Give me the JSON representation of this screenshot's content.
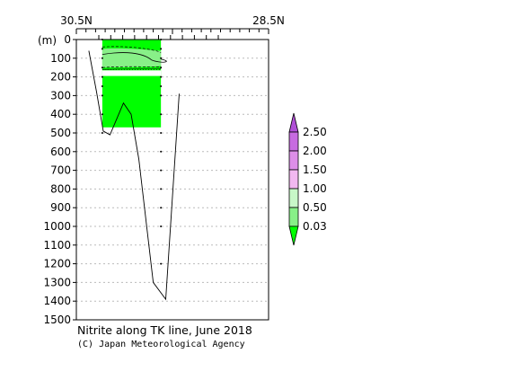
{
  "chart_data": {
    "type": "contour-section",
    "title": "Nitrite along TK line, June 2018",
    "credit": "(C) Japan Meteorological Agency",
    "x_axis": {
      "left_label": "30.5N",
      "right_label": "28.5N"
    },
    "y_axis": {
      "unit_label": "(m)",
      "range": [
        0,
        1500
      ],
      "ticks": [
        0,
        100,
        200,
        300,
        400,
        500,
        600,
        700,
        800,
        900,
        1000,
        1100,
        1200,
        1300,
        1400,
        1500
      ]
    },
    "latitude_range": [
      30.5,
      28.5
    ],
    "bottom_profile": [
      {
        "lat": 30.37,
        "depth": 60
      },
      {
        "lat": 30.29,
        "depth": 280
      },
      {
        "lat": 30.22,
        "depth": 490
      },
      {
        "lat": 30.15,
        "depth": 510
      },
      {
        "lat": 30.01,
        "depth": 340
      },
      {
        "lat": 29.93,
        "depth": 400
      },
      {
        "lat": 29.85,
        "depth": 640
      },
      {
        "lat": 29.7,
        "depth": 1300
      },
      {
        "lat": 29.57,
        "depth": 1390
      },
      {
        "lat": 29.43,
        "depth": 290
      }
    ],
    "stations": [
      {
        "lat": 30.23,
        "depths": [
          0,
          50,
          100,
          150,
          200,
          250,
          300,
          400,
          500
        ]
      },
      {
        "lat": 29.62,
        "depths": [
          0,
          50,
          100,
          150,
          200,
          250,
          300,
          400,
          500,
          600,
          700,
          800,
          900,
          1000,
          1200
        ]
      }
    ],
    "colorbar": {
      "levels": [
        "2.50",
        "2.00",
        "1.50",
        "1.00",
        "0.50",
        "0.03"
      ],
      "colors": {
        "above_2_50": "#b04fd6",
        "2_00_to_2_50": "#c76be0",
        "1_50_to_2_00": "#dd8ee8",
        "1_00_to_1_50": "#f2b8f0",
        "0_50_to_1_00": "#c8f8c8",
        "0_03_to_0_50": "#88f088",
        "below_0_03": "#00ff00"
      }
    },
    "field": {
      "fill_color": "#00ff00",
      "band_color": "#88f088",
      "band_depths": [
        50,
        150
      ]
    }
  }
}
